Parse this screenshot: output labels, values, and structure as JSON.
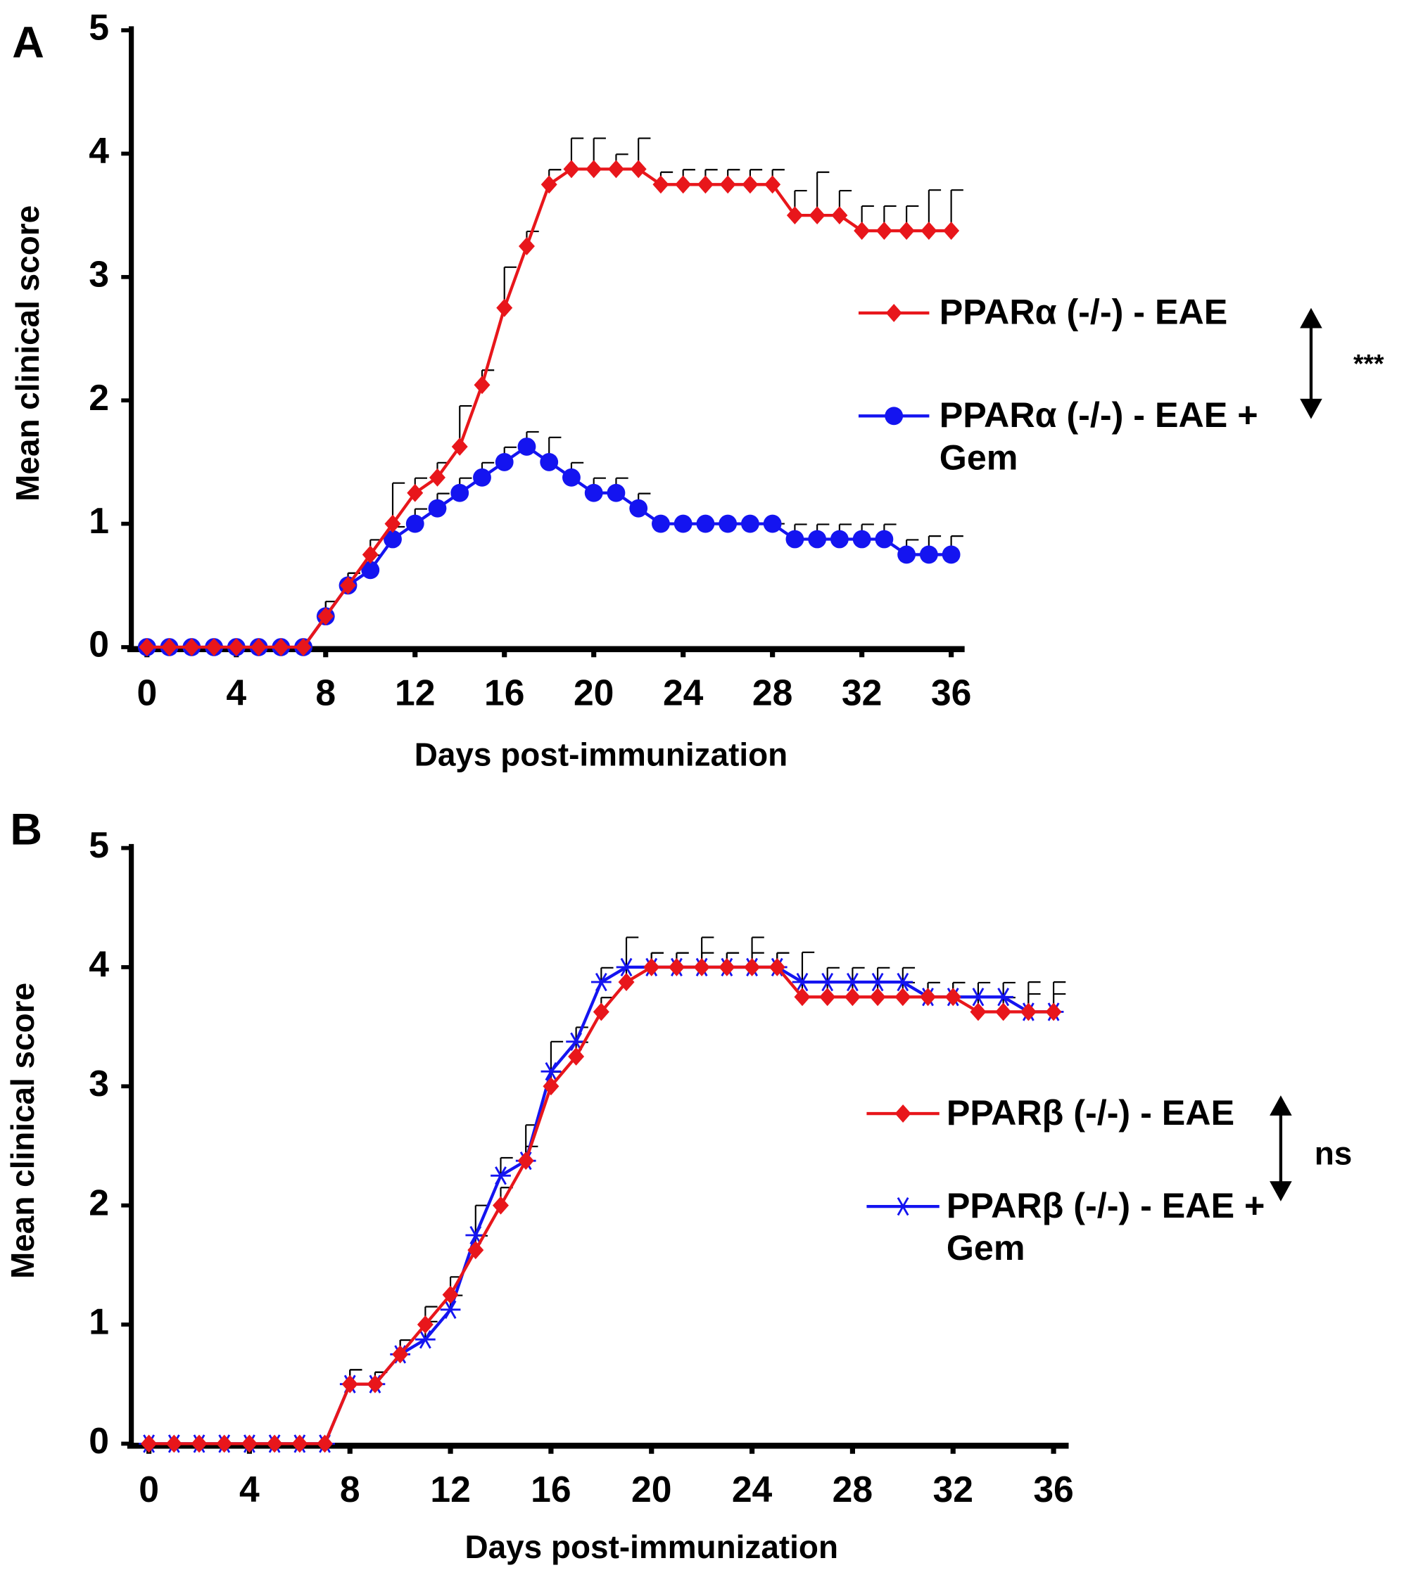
{
  "chart_data": [
    {
      "type": "line",
      "panel_label": "A",
      "x_label": "Days post-immunization",
      "y_label": "Mean clinical score",
      "annotation": "***",
      "x": [
        0,
        1,
        2,
        3,
        4,
        5,
        6,
        7,
        8,
        9,
        10,
        11,
        12,
        13,
        14,
        15,
        16,
        17,
        18,
        19,
        20,
        21,
        22,
        23,
        24,
        25,
        26,
        27,
        28,
        29,
        30,
        31,
        32,
        33,
        34,
        35,
        36
      ],
      "series": [
        {
          "name": "PPARα (-/-) - EAE",
          "color": "#e8161b",
          "marker": "diamond",
          "values": [
            0,
            0,
            0,
            0,
            0,
            0,
            0,
            0,
            0.25,
            0.5,
            0.75,
            1.0,
            1.25,
            1.375,
            1.625,
            2.125,
            2.75,
            3.25,
            3.75,
            3.875,
            3.875,
            3.875,
            3.875,
            3.75,
            3.75,
            3.75,
            3.75,
            3.75,
            3.75,
            3.5,
            3.5,
            3.5,
            3.375,
            3.375,
            3.375,
            3.375,
            3.375
          ],
          "errors": [
            0,
            0,
            0,
            0,
            0,
            0,
            0,
            0,
            0.12,
            0.1,
            0.12,
            0.33,
            0.12,
            0.12,
            0.33,
            0.12,
            0.33,
            0.12,
            0.12,
            0.25,
            0.25,
            0.12,
            0.25,
            0.1,
            0.12,
            0.12,
            0.12,
            0.12,
            0.12,
            0.2,
            0.35,
            0.2,
            0.2,
            0.2,
            0.2,
            0.33,
            0.33
          ]
        },
        {
          "name": "PPARα (-/-) - EAE + Gem",
          "color": "#1414f0",
          "marker": "circle",
          "values": [
            0,
            0,
            0,
            0,
            0,
            0,
            0,
            0,
            0.25,
            0.5,
            0.625,
            0.875,
            1.0,
            1.125,
            1.25,
            1.375,
            1.5,
            1.625,
            1.5,
            1.375,
            1.25,
            1.25,
            1.125,
            1.0,
            1.0,
            1.0,
            1.0,
            1.0,
            1.0,
            0.875,
            0.875,
            0.875,
            0.875,
            0.875,
            0.75,
            0.75,
            0.75
          ],
          "errors": [
            0,
            0,
            0,
            0,
            0,
            0,
            0,
            0,
            0.12,
            0.1,
            0.12,
            0.1,
            0.12,
            0.12,
            0.12,
            0.12,
            0.12,
            0.12,
            0.2,
            0.12,
            0.12,
            0.12,
            0.12,
            0.0,
            0.0,
            0.0,
            0.0,
            0.0,
            0.0,
            0.12,
            0.12,
            0.12,
            0.12,
            0.12,
            0.12,
            0.15,
            0.15
          ]
        }
      ],
      "xlim": [
        -0.7,
        36.6
      ],
      "ylim": [
        0,
        5
      ],
      "xticks": [
        0,
        4,
        8,
        12,
        16,
        20,
        24,
        28,
        32,
        36
      ],
      "yticks": [
        0,
        1,
        2,
        3,
        4,
        5
      ]
    },
    {
      "type": "line",
      "panel_label": "B",
      "x_label": "Days post-immunization",
      "y_label": "Mean clinical score",
      "annotation": "ns",
      "x": [
        0,
        1,
        2,
        3,
        4,
        5,
        6,
        7,
        8,
        9,
        10,
        11,
        12,
        13,
        14,
        15,
        16,
        17,
        18,
        19,
        20,
        21,
        22,
        23,
        24,
        25,
        26,
        27,
        28,
        29,
        30,
        31,
        32,
        33,
        34,
        35,
        36
      ],
      "series": [
        {
          "name": "PPARβ (-/-) - EAE",
          "color": "#e8161b",
          "marker": "diamond",
          "values": [
            0,
            0,
            0,
            0,
            0,
            0,
            0,
            0,
            0.5,
            0.5,
            0.75,
            1.0,
            1.25,
            1.625,
            2.0,
            2.375,
            3.0,
            3.25,
            3.625,
            3.875,
            4.0,
            4.0,
            4.0,
            4.0,
            4.0,
            4.0,
            3.75,
            3.75,
            3.75,
            3.75,
            3.75,
            3.75,
            3.75,
            3.625,
            3.625,
            3.625,
            3.625
          ],
          "errors": [
            0,
            0,
            0,
            0,
            0,
            0,
            0,
            0,
            0.12,
            0.1,
            0.12,
            0.15,
            0.15,
            0.12,
            0.15,
            0.12,
            0.12,
            0.12,
            0.12,
            0.12,
            0.12,
            0.12,
            0.12,
            0.12,
            0.12,
            0.12,
            0.12,
            0.12,
            0.12,
            0.12,
            0.12,
            0.12,
            0.12,
            0.12,
            0.12,
            0.15,
            0.15
          ]
        },
        {
          "name": "PPARβ (-/-) - EAE + Gem",
          "color": "#1414f0",
          "marker": "asterisk",
          "values": [
            0,
            0,
            0,
            0,
            0,
            0,
            0,
            0,
            0.5,
            0.5,
            0.75,
            0.875,
            1.125,
            1.75,
            2.25,
            2.375,
            3.125,
            3.375,
            3.875,
            4.0,
            4.0,
            4.0,
            4.0,
            4.0,
            4.0,
            4.0,
            3.875,
            3.875,
            3.875,
            3.875,
            3.875,
            3.75,
            3.75,
            3.75,
            3.75,
            3.625,
            3.625
          ],
          "errors": [
            0,
            0,
            0,
            0,
            0,
            0,
            0,
            0,
            0.12,
            0.1,
            0.12,
            0.15,
            0.12,
            0.25,
            0.15,
            0.3,
            0.25,
            0.12,
            0.12,
            0.25,
            0.12,
            0.12,
            0.25,
            0.12,
            0.25,
            0.12,
            0.25,
            0.12,
            0.12,
            0.12,
            0.12,
            0.12,
            0.12,
            0.12,
            0.12,
            0.25,
            0.25
          ]
        }
      ],
      "xlim": [
        -0.7,
        36.6
      ],
      "ylim": [
        0,
        5
      ],
      "xticks": [
        0,
        4,
        8,
        12,
        16,
        20,
        24,
        28,
        32,
        36
      ],
      "yticks": [
        0,
        1,
        2,
        3,
        4,
        5
      ]
    }
  ]
}
